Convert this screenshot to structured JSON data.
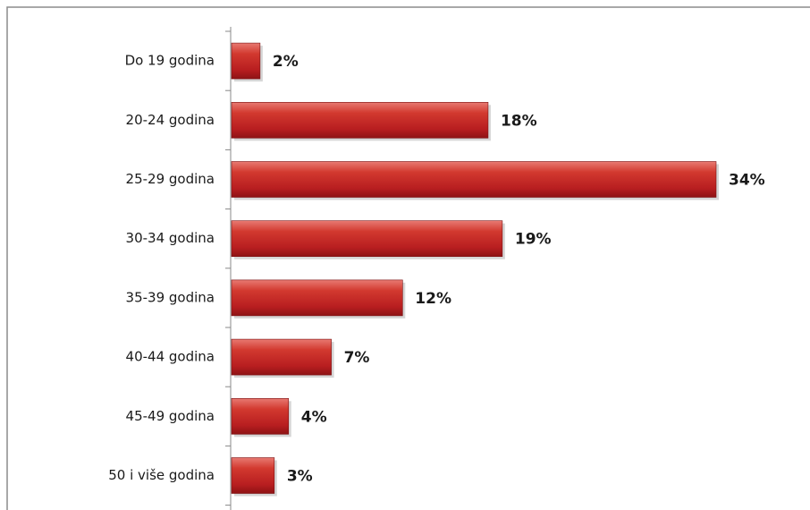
{
  "chart_data": {
    "type": "bar",
    "orientation": "horizontal",
    "categories": [
      "Do 19 godina",
      "20-24 godina",
      "25-29 godina",
      "30-34 godina",
      "35-39 godina",
      "40-44 godina",
      "45-49 godina",
      "50 i više godina"
    ],
    "values": [
      2,
      18,
      34,
      19,
      12,
      7,
      4,
      3
    ],
    "value_labels": [
      "2%",
      "18%",
      "34%",
      "19%",
      "12%",
      "7%",
      "4%",
      "3%"
    ],
    "color": "#c0262a"
  }
}
